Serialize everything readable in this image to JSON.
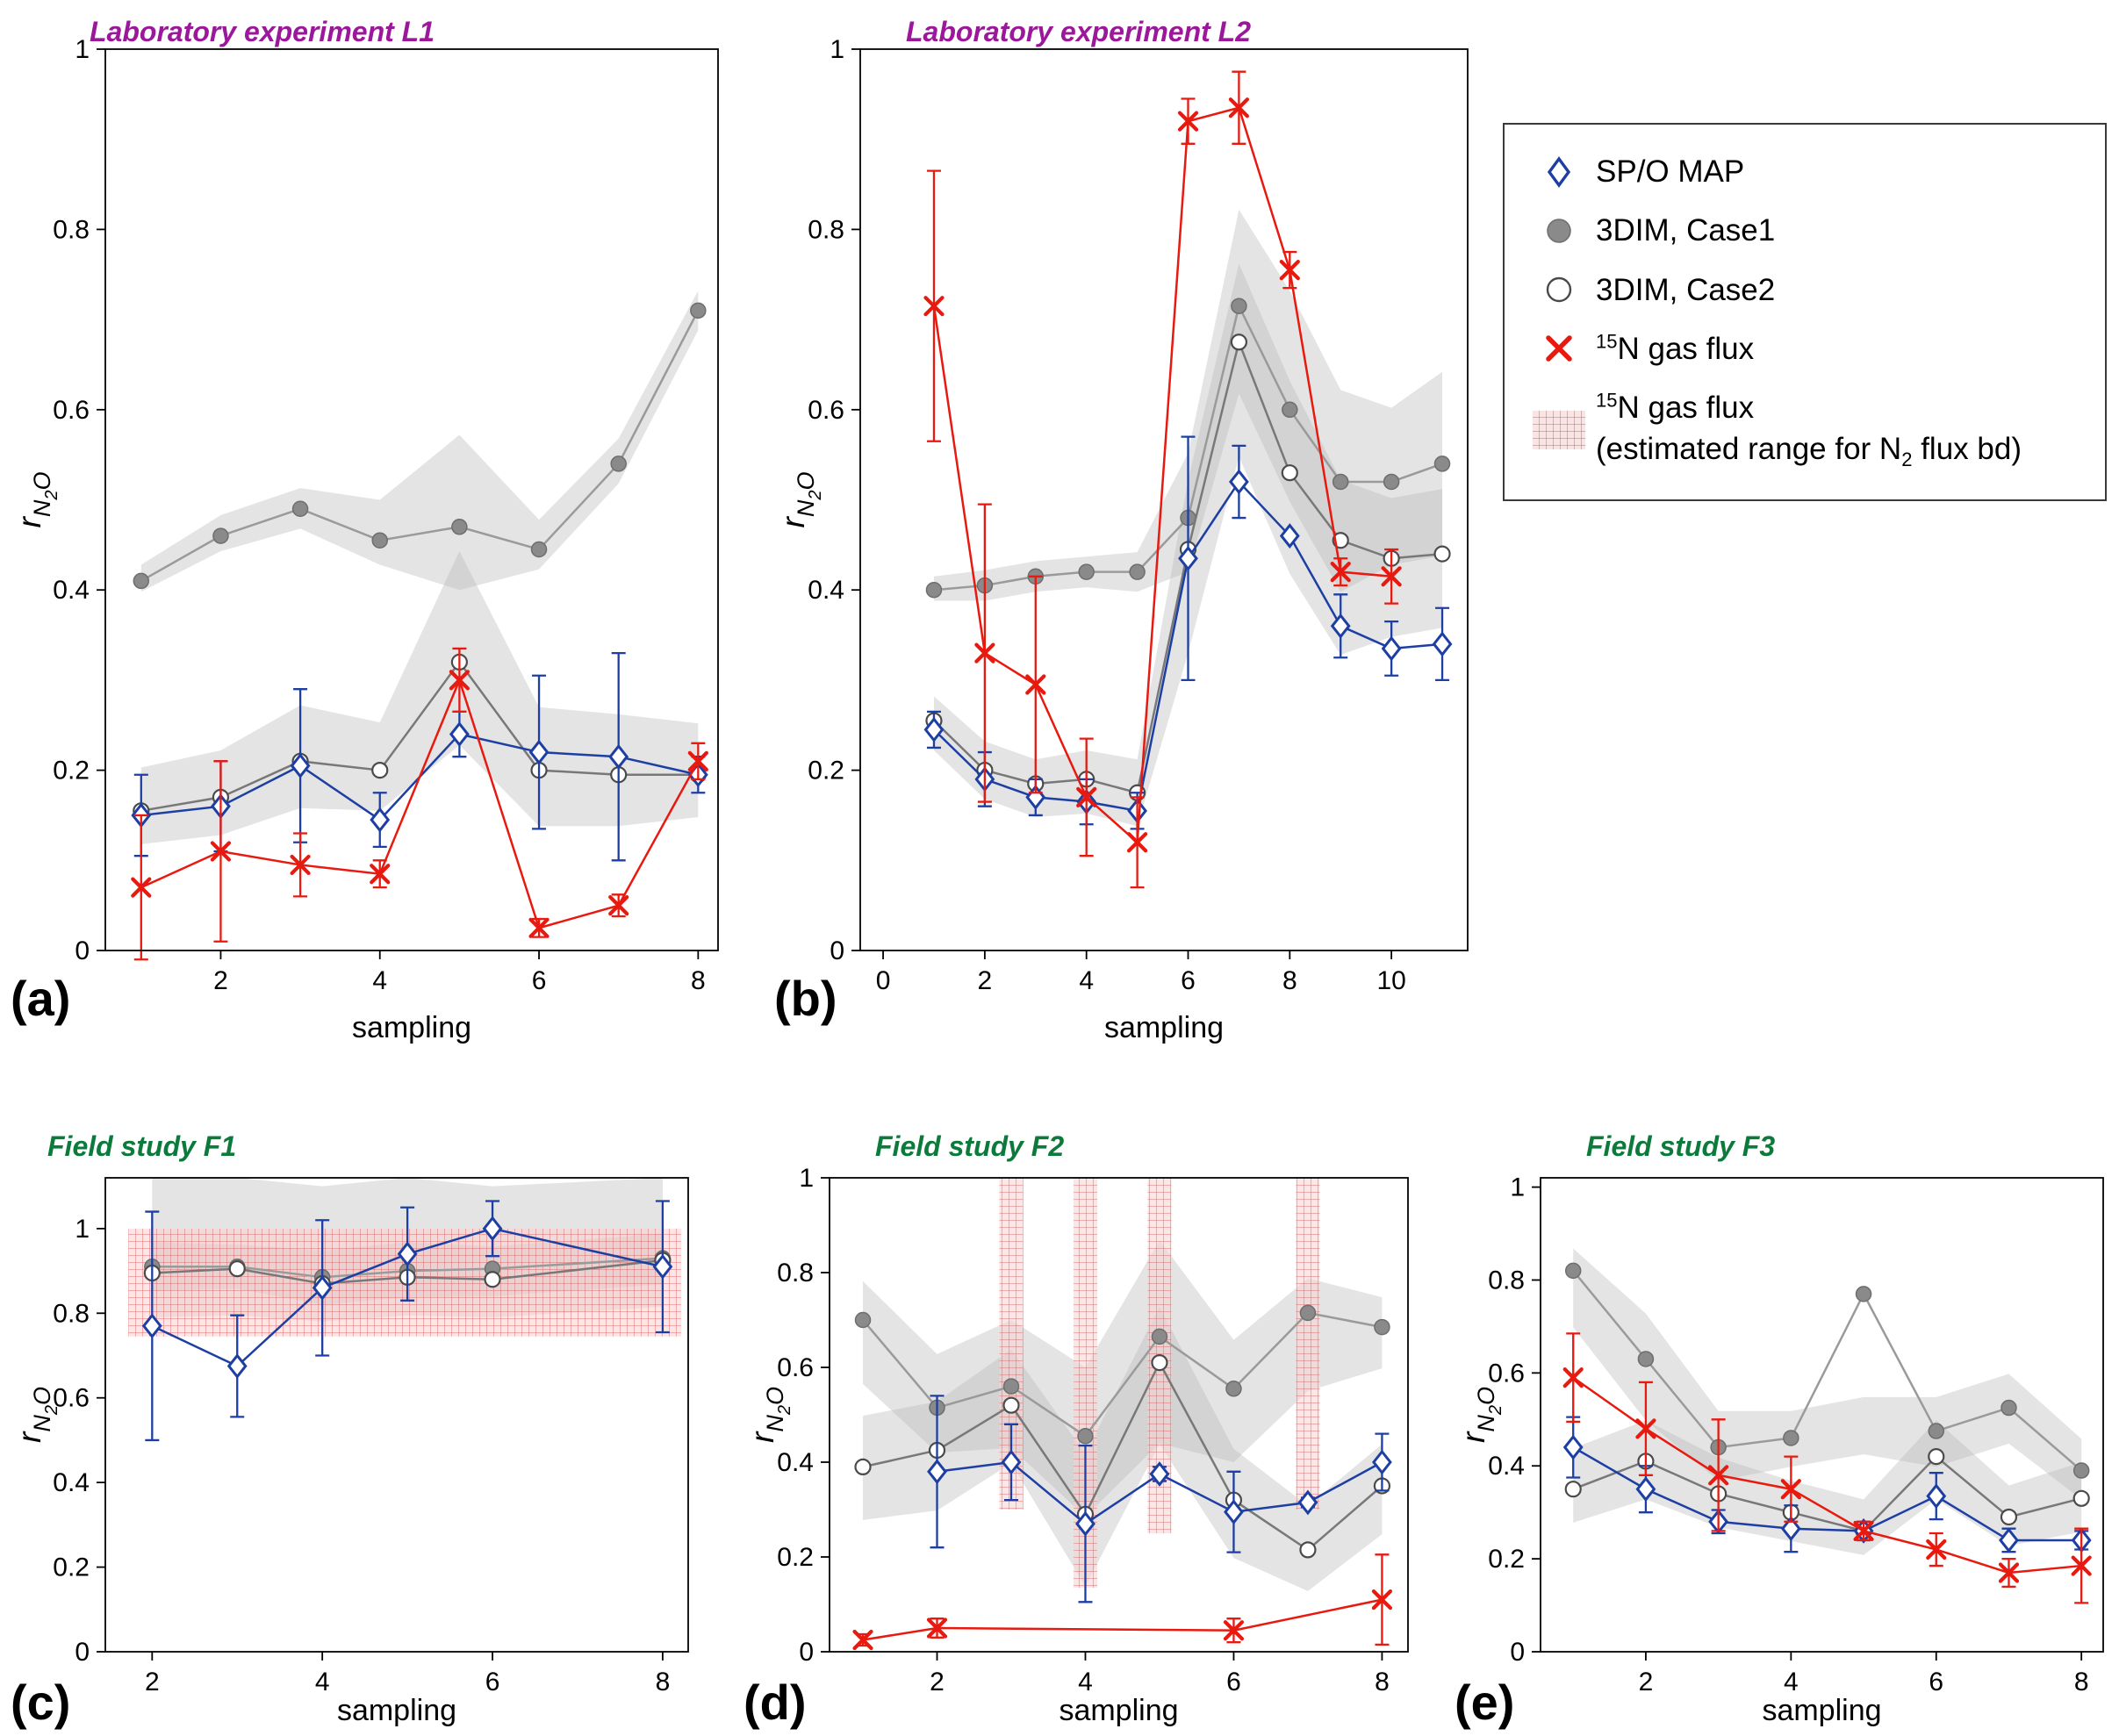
{
  "figure": {
    "legend": {
      "items": [
        {
          "icon": "diamond-icon",
          "label": "SP/O MAP"
        },
        {
          "icon": "filled-circle-icon",
          "label": "3DIM, Case1"
        },
        {
          "icon": "open-circle-icon",
          "label": "3DIM, Case2"
        },
        {
          "icon": "x-icon",
          "sup": "15",
          "label": "N gas flux"
        },
        {
          "icon": "hatch-swatch-icon",
          "sup": "15",
          "label": "N gas flux",
          "line2_pre": "(estimated range for N",
          "line2_sub": "2",
          "line2_post": " flux bd)"
        }
      ]
    },
    "colors": {
      "blue": "#1d3fa3",
      "red": "#e8190f",
      "gray_marker": "#8a8a8a",
      "open_marker_stroke": "#4a4a4a",
      "band_gray": "#b9b9b9",
      "title_purple": "#9b189b",
      "title_green": "#0b7a3b"
    }
  },
  "chart_data": [
    {
      "id": "a",
      "panel_label": "(a)",
      "title": "Laboratory experiment L1",
      "title_color": "#9b189b",
      "type": "line",
      "xlabel": "sampling",
      "ylabel_main": "r",
      "ylabel_sub": "N2O",
      "xlim": [
        0.55,
        8.25
      ],
      "ylim": [
        0,
        1.0
      ],
      "xticks": [
        2,
        4,
        6,
        8
      ],
      "yticks": [
        0,
        0.2,
        0.4,
        0.6,
        0.8,
        1
      ],
      "x": [
        1,
        2,
        3,
        4,
        5,
        6,
        7,
        8
      ],
      "bands": [
        {
          "name": "3DIM Case1 range",
          "lower": [
            0.398,
            0.443,
            0.468,
            0.428,
            0.4,
            0.423,
            0.518,
            0.688
          ],
          "upper": [
            0.428,
            0.483,
            0.513,
            0.5,
            0.572,
            0.478,
            0.568,
            0.732
          ]
        },
        {
          "name": "3DIM Case2 range",
          "lower": [
            0.118,
            0.128,
            0.158,
            0.155,
            0.228,
            0.138,
            0.138,
            0.148
          ],
          "upper": [
            0.203,
            0.222,
            0.272,
            0.253,
            0.443,
            0.27,
            0.262,
            0.252
          ]
        }
      ],
      "series": [
        {
          "name": "3DIM, Case1",
          "marker": "circle-filled",
          "color": "#8a8a8a",
          "line_color": "#9a9a9a",
          "values": [
            0.41,
            0.46,
            0.49,
            0.455,
            0.47,
            0.445,
            0.54,
            0.71
          ]
        },
        {
          "name": "3DIM, Case2",
          "marker": "circle-open",
          "color": "#4a4a4a",
          "line_color": "#787878",
          "values": [
            0.155,
            0.17,
            0.21,
            0.2,
            0.32,
            0.2,
            0.195,
            0.195
          ]
        },
        {
          "name": "SP/O MAP",
          "marker": "diamond",
          "color": "#1d3fa3",
          "values": [
            0.15,
            0.16,
            0.205,
            0.145,
            0.24,
            0.22,
            0.215,
            0.195
          ],
          "err": [
            0.045,
            0.05,
            0.085,
            0.03,
            0.025,
            0.085,
            0.115,
            0.02
          ]
        },
        {
          "name": "15N gas flux",
          "marker": "x",
          "color": "#e8190f",
          "values": [
            0.07,
            0.11,
            0.095,
            0.085,
            0.3,
            0.025,
            0.05,
            0.21
          ],
          "err": [
            0.08,
            0.1,
            0.035,
            0.015,
            0.035,
            0.01,
            0.012,
            0.02
          ]
        }
      ]
    },
    {
      "id": "b",
      "panel_label": "(b)",
      "title": "Laboratory experiment L2",
      "title_color": "#9b189b",
      "type": "line",
      "xlabel": "sampling",
      "ylabel_main": "r",
      "ylabel_sub": "N2O",
      "xlim": [
        -0.45,
        11.5
      ],
      "ylim": [
        0,
        1.0
      ],
      "xticks": [
        0,
        2,
        4,
        6,
        8,
        10
      ],
      "yticks": [
        0,
        0.2,
        0.4,
        0.6,
        0.8,
        1
      ],
      "x": [
        1,
        2,
        3,
        4,
        5,
        6,
        7,
        8,
        9,
        10,
        11
      ],
      "bands": [
        {
          "name": "3DIM Case1 range",
          "lower": [
            0.388,
            0.388,
            0.398,
            0.403,
            0.398,
            0.42,
            0.618,
            0.498,
            0.398,
            0.428,
            0.438
          ],
          "upper": [
            0.415,
            0.422,
            0.432,
            0.437,
            0.442,
            0.552,
            0.822,
            0.732,
            0.622,
            0.602,
            0.642
          ]
        },
        {
          "name": "3DIM Case2 range",
          "lower": [
            0.222,
            0.168,
            0.148,
            0.152,
            0.138,
            0.33,
            0.548,
            0.418,
            0.328,
            0.348,
            0.358
          ],
          "upper": [
            0.282,
            0.232,
            0.212,
            0.222,
            0.212,
            0.522,
            0.762,
            0.632,
            0.522,
            0.502,
            0.512
          ]
        }
      ],
      "series": [
        {
          "name": "3DIM, Case1",
          "marker": "circle-filled",
          "color": "#8a8a8a",
          "line_color": "#9a9a9a",
          "values": [
            0.4,
            0.405,
            0.415,
            0.42,
            0.42,
            0.48,
            0.715,
            0.6,
            0.52,
            0.52,
            0.54
          ]
        },
        {
          "name": "3DIM, Case2",
          "marker": "circle-open",
          "color": "#4a4a4a",
          "line_color": "#787878",
          "values": [
            0.255,
            0.2,
            0.185,
            0.19,
            0.175,
            0.445,
            0.675,
            0.53,
            0.455,
            0.435,
            0.44
          ]
        },
        {
          "name": "SP/O MAP",
          "marker": "diamond",
          "color": "#1d3fa3",
          "values": [
            0.245,
            0.19,
            0.17,
            0.165,
            0.155,
            0.435,
            0.52,
            0.46,
            0.36,
            0.335,
            0.34
          ],
          "err": [
            0.02,
            0.03,
            0.02,
            0.025,
            0.02,
            0.135,
            0.04,
            null,
            0.035,
            0.03,
            0.04
          ]
        },
        {
          "name": "15N gas flux",
          "marker": "x",
          "color": "#e8190f",
          "values": [
            0.715,
            0.33,
            0.295,
            0.17,
            0.12,
            0.92,
            0.935,
            0.755,
            0.42,
            0.415,
            null
          ],
          "err": [
            0.15,
            0.165,
            0.12,
            0.065,
            0.05,
            0.025,
            0.04,
            0.02,
            0.015,
            0.03,
            null
          ]
        }
      ]
    },
    {
      "id": "c",
      "panel_label": "(c)",
      "title": "Field study F1",
      "title_color": "#0b7a3b",
      "type": "line",
      "xlabel": "sampling",
      "ylabel_main": "r",
      "ylabel_sub": "N2O",
      "xlim": [
        1.45,
        8.3
      ],
      "ylim": [
        0,
        1.12
      ],
      "xticks": [
        2,
        4,
        6,
        8
      ],
      "yticks": [
        0,
        0.2,
        0.4,
        0.6,
        0.8,
        1
      ],
      "x": [
        2,
        3,
        4,
        5,
        6,
        8
      ],
      "bands": [
        {
          "name": "3DIM Case1 range",
          "lower": [
            0.79,
            0.795,
            0.78,
            0.795,
            0.79,
            0.815
          ],
          "upper": [
            1.12,
            1.12,
            1.1,
            1.12,
            1.1,
            1.12
          ]
        },
        {
          "name": "3DIM Case2 range",
          "lower": [
            0.853,
            0.858,
            0.82,
            0.838,
            0.84,
            0.868
          ],
          "upper": [
            0.968,
            0.962,
            0.948,
            0.968,
            0.958,
            0.988
          ]
        }
      ],
      "red_range_band": {
        "x0": 1.72,
        "x1": 8.22,
        "y0": 0.745,
        "y1": 1.0
      },
      "series": [
        {
          "name": "3DIM, Case1",
          "marker": "circle-filled",
          "color": "#8a8a8a",
          "line_color": "#9a9a9a",
          "values": [
            0.91,
            0.91,
            0.885,
            0.9,
            0.905,
            0.93
          ]
        },
        {
          "name": "3DIM, Case2",
          "marker": "circle-open",
          "color": "#4a4a4a",
          "line_color": "#787878",
          "values": [
            0.895,
            0.905,
            0.87,
            0.885,
            0.88,
            0.925
          ]
        },
        {
          "name": "SP/O MAP",
          "marker": "diamond",
          "color": "#1d3fa3",
          "values": [
            0.77,
            0.675,
            0.86,
            0.94,
            1.0,
            0.91
          ],
          "err": [
            0.27,
            0.12,
            0.16,
            0.11,
            0.065,
            0.155
          ]
        }
      ]
    },
    {
      "id": "d",
      "panel_label": "(d)",
      "title": "Field study F2",
      "title_color": "#0b7a3b",
      "type": "line",
      "xlabel": "sampling",
      "ylabel_main": "r",
      "ylabel_sub": "N2O",
      "xlim": [
        0.55,
        8.35
      ],
      "ylim": [
        0,
        1.0
      ],
      "xticks": [
        2,
        4,
        6,
        8
      ],
      "yticks": [
        0,
        0.2,
        0.4,
        0.6,
        0.8,
        1
      ],
      "x": [
        1,
        2,
        3,
        4,
        5,
        6,
        7,
        8
      ],
      "bands": [
        {
          "name": "3DIM Case1 range",
          "lower": [
            0.565,
            0.42,
            0.43,
            0.285,
            0.44,
            0.4,
            0.55,
            0.598
          ],
          "upper": [
            0.782,
            0.628,
            0.7,
            0.6,
            0.868,
            0.658,
            0.788,
            0.748
          ]
        },
        {
          "name": "3DIM Case2 range",
          "lower": [
            0.278,
            0.298,
            0.398,
            0.138,
            0.438,
            0.198,
            0.128,
            0.248
          ],
          "upper": [
            0.498,
            0.528,
            0.638,
            0.418,
            0.728,
            0.428,
            0.308,
            0.438
          ]
        }
      ],
      "red_range_bars": [
        {
          "x": 3,
          "y0": 0.3,
          "y1": 1.0
        },
        {
          "x": 4,
          "y0": 0.135,
          "y1": 1.0
        },
        {
          "x": 5,
          "y0": 0.25,
          "y1": 1.0
        },
        {
          "x": 7,
          "y0": 0.3,
          "y1": 1.0
        }
      ],
      "red_bar_halfwidth": 0.16,
      "series": [
        {
          "name": "3DIM, Case1",
          "marker": "circle-filled",
          "color": "#8a8a8a",
          "line_color": "#9a9a9a",
          "values": [
            0.7,
            0.515,
            0.56,
            0.455,
            0.665,
            0.555,
            0.715,
            0.685
          ]
        },
        {
          "name": "3DIM, Case2",
          "marker": "circle-open",
          "color": "#4a4a4a",
          "line_color": "#787878",
          "values": [
            0.39,
            0.425,
            0.52,
            0.29,
            0.61,
            0.32,
            0.215,
            0.35
          ]
        },
        {
          "name": "SP/O MAP",
          "marker": "diamond",
          "color": "#1d3fa3",
          "values": [
            null,
            0.38,
            0.4,
            0.27,
            0.375,
            0.295,
            0.315,
            0.4
          ],
          "err": [
            null,
            0.16,
            0.08,
            0.165,
            0.015,
            0.085,
            0.01,
            0.06
          ]
        },
        {
          "name": "15N gas flux",
          "marker": "x",
          "color": "#e8190f",
          "values": [
            0.025,
            0.05,
            null,
            null,
            null,
            0.045,
            null,
            0.11
          ],
          "err": [
            0.012,
            0.02,
            null,
            null,
            null,
            0.025,
            null,
            0.095
          ]
        }
      ]
    },
    {
      "id": "e",
      "panel_label": "(e)",
      "title": "Field study F3",
      "title_color": "#0b7a3b",
      "type": "line",
      "xlabel": "sampling",
      "ylabel_main": "r",
      "ylabel_sub": "N2O",
      "xlim": [
        0.55,
        8.3
      ],
      "ylim": [
        0,
        1.02
      ],
      "xticks": [
        2,
        4,
        6,
        8
      ],
      "yticks": [
        0,
        0.2,
        0.4,
        0.6,
        0.8,
        1
      ],
      "x": [
        1,
        2,
        3,
        4,
        5,
        6,
        7,
        8
      ],
      "bands": [
        {
          "name": "3DIM Case1 range",
          "lower": [
            0.698,
            0.498,
            0.368,
            0.398,
            0.425,
            0.398,
            0.448,
            0.328
          ],
          "upper": [
            0.868,
            0.728,
            0.518,
            0.518,
            0.548,
            0.548,
            0.598,
            0.458
          ]
        },
        {
          "name": "3DIM Case2 range",
          "lower": [
            0.278,
            0.328,
            0.268,
            0.238,
            0.208,
            0.328,
            0.228,
            0.258
          ],
          "upper": [
            0.438,
            0.498,
            0.418,
            0.368,
            0.328,
            0.498,
            0.358,
            0.408
          ]
        }
      ],
      "series": [
        {
          "name": "3DIM, Case1",
          "marker": "circle-filled",
          "color": "#8a8a8a",
          "line_color": "#9a9a9a",
          "values": [
            0.82,
            0.63,
            0.44,
            0.46,
            0.77,
            0.475,
            0.525,
            0.39
          ]
        },
        {
          "name": "3DIM, Case2",
          "marker": "circle-open",
          "color": "#4a4a4a",
          "line_color": "#787878",
          "values": [
            0.35,
            0.41,
            0.34,
            0.3,
            0.26,
            0.42,
            0.29,
            0.33
          ]
        },
        {
          "name": "SP/O MAP",
          "marker": "diamond",
          "color": "#1d3fa3",
          "values": [
            0.44,
            0.35,
            0.28,
            0.265,
            0.26,
            0.335,
            0.24,
            0.24
          ],
          "err": [
            0.065,
            0.05,
            0.025,
            0.05,
            0.02,
            0.05,
            0.025,
            0.02
          ]
        },
        {
          "name": "15N gas flux",
          "marker": "x",
          "color": "#e8190f",
          "values": [
            0.59,
            0.48,
            0.38,
            0.35,
            0.26,
            0.22,
            0.17,
            0.185
          ],
          "err": [
            0.095,
            0.1,
            0.12,
            0.07,
            0.02,
            0.035,
            0.03,
            0.08
          ]
        }
      ]
    }
  ]
}
